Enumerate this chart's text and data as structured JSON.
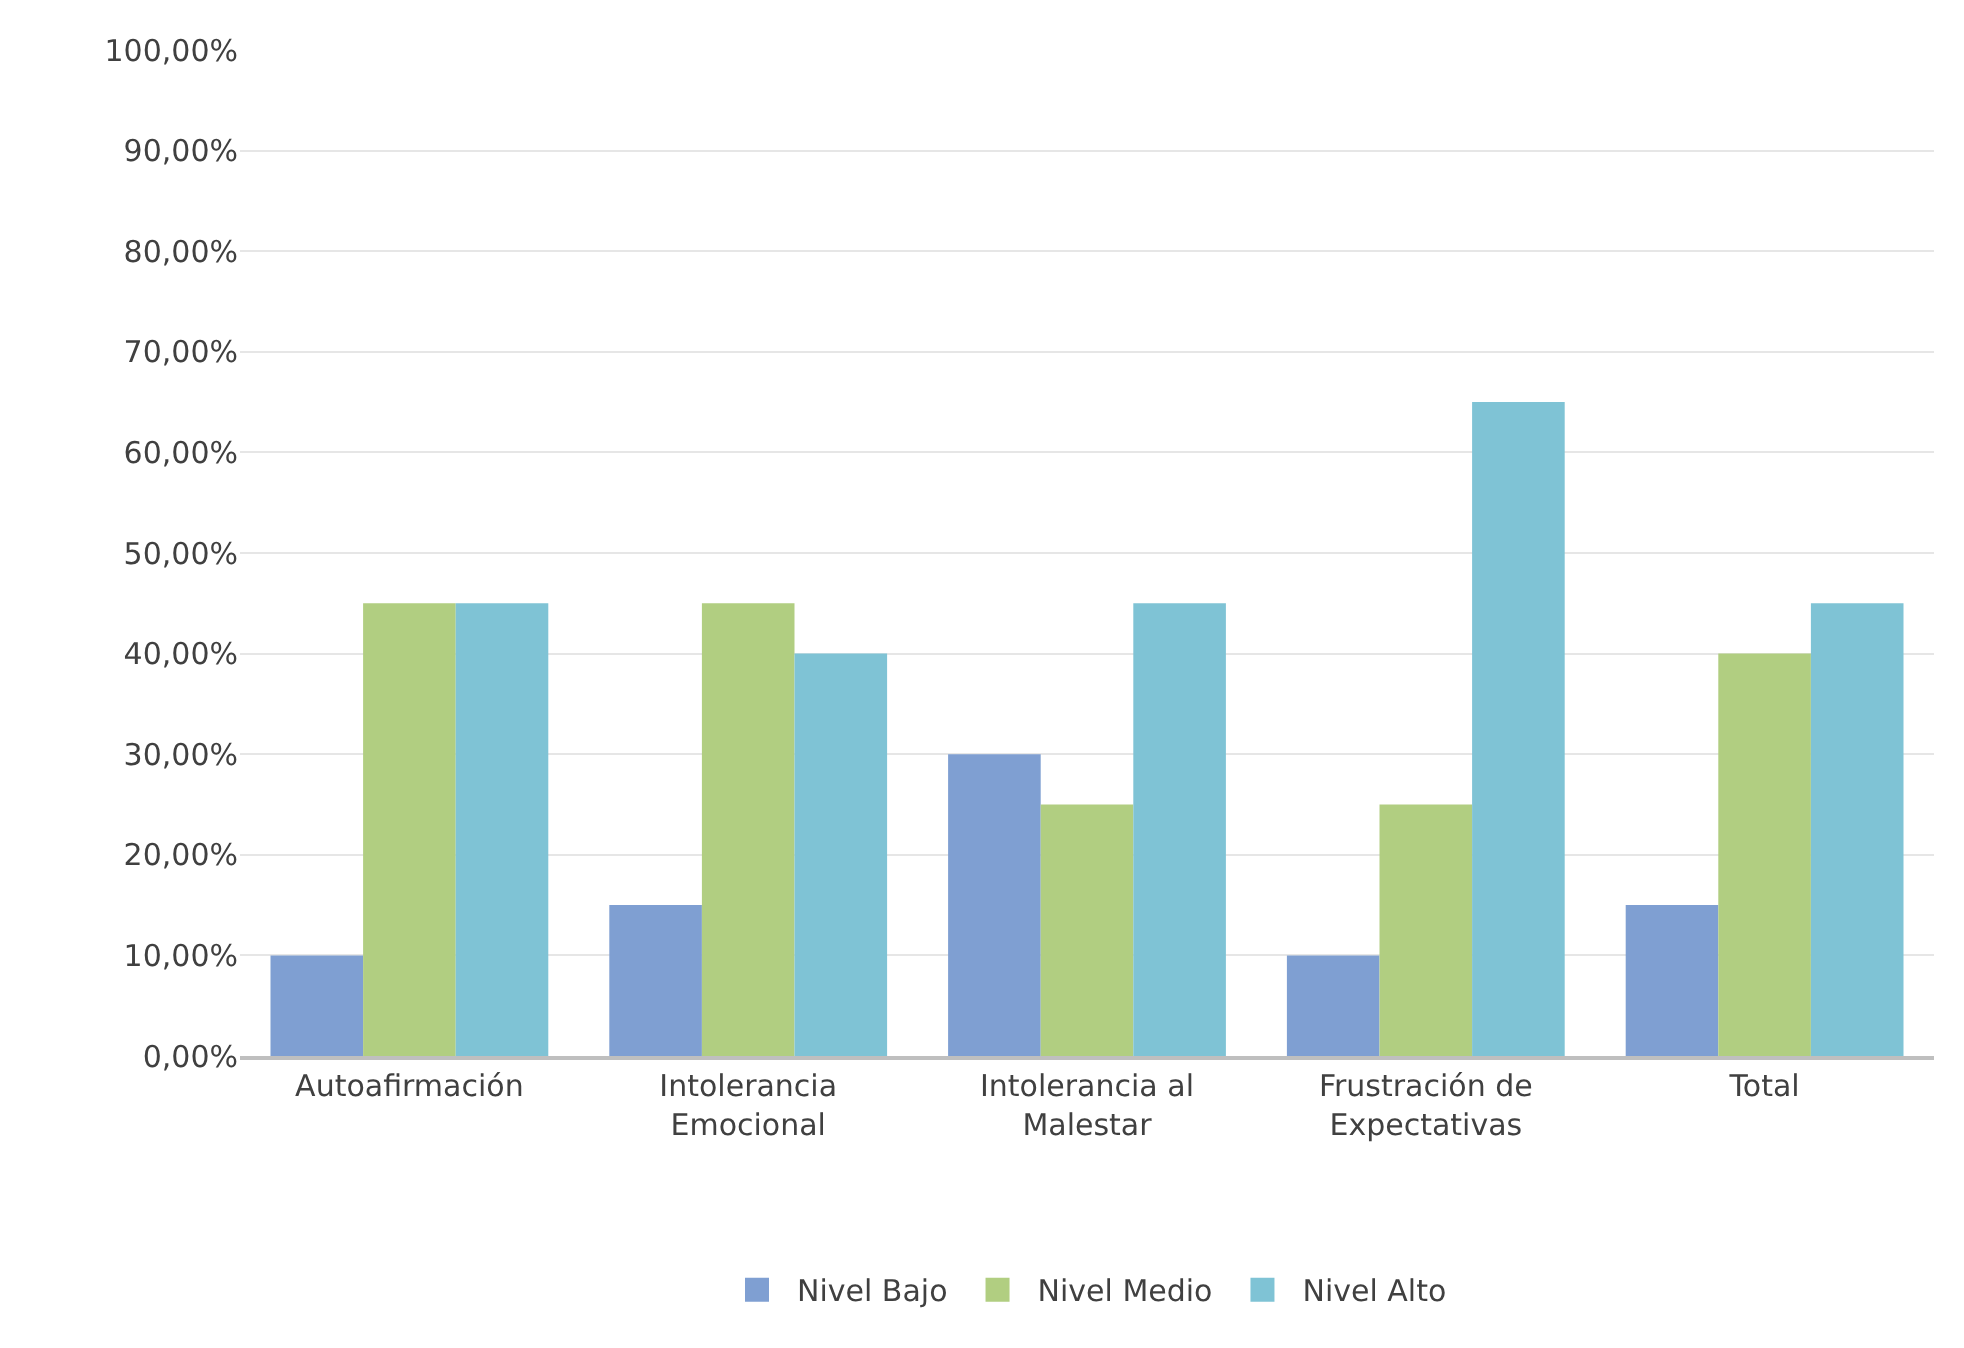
{
  "chart_data": {
    "type": "bar",
    "categories": [
      "Autoafirmación",
      "Intolerancia Emocional",
      "Intolerancia al Malestar",
      "Frustración de Expectativas",
      "Total"
    ],
    "series": [
      {
        "name": "Nivel Bajo",
        "color": "#7f9fd2",
        "values": [
          10,
          15,
          30,
          10,
          15
        ]
      },
      {
        "name": "Nivel Medio",
        "color": "#b1ce81",
        "values": [
          45,
          45,
          25,
          25,
          40
        ]
      },
      {
        "name": "Nivel Alto",
        "color": "#7fc3d5",
        "values": [
          45,
          40,
          45,
          65,
          45
        ]
      }
    ],
    "ylim": [
      0,
      100
    ],
    "yticks": [
      {
        "value": 0,
        "label": "0,00%"
      },
      {
        "value": 10,
        "label": "10,00%"
      },
      {
        "value": 20,
        "label": "20,00%"
      },
      {
        "value": 30,
        "label": "30,00%"
      },
      {
        "value": 40,
        "label": "40,00%"
      },
      {
        "value": 50,
        "label": "50,00%"
      },
      {
        "value": 60,
        "label": "60,00%"
      },
      {
        "value": 70,
        "label": "70,00%"
      },
      {
        "value": 80,
        "label": "80,00%"
      },
      {
        "value": 90,
        "label": "90,00%"
      },
      {
        "value": 100,
        "label": "100,00%"
      }
    ],
    "grid": "y",
    "legend": "bottom"
  }
}
